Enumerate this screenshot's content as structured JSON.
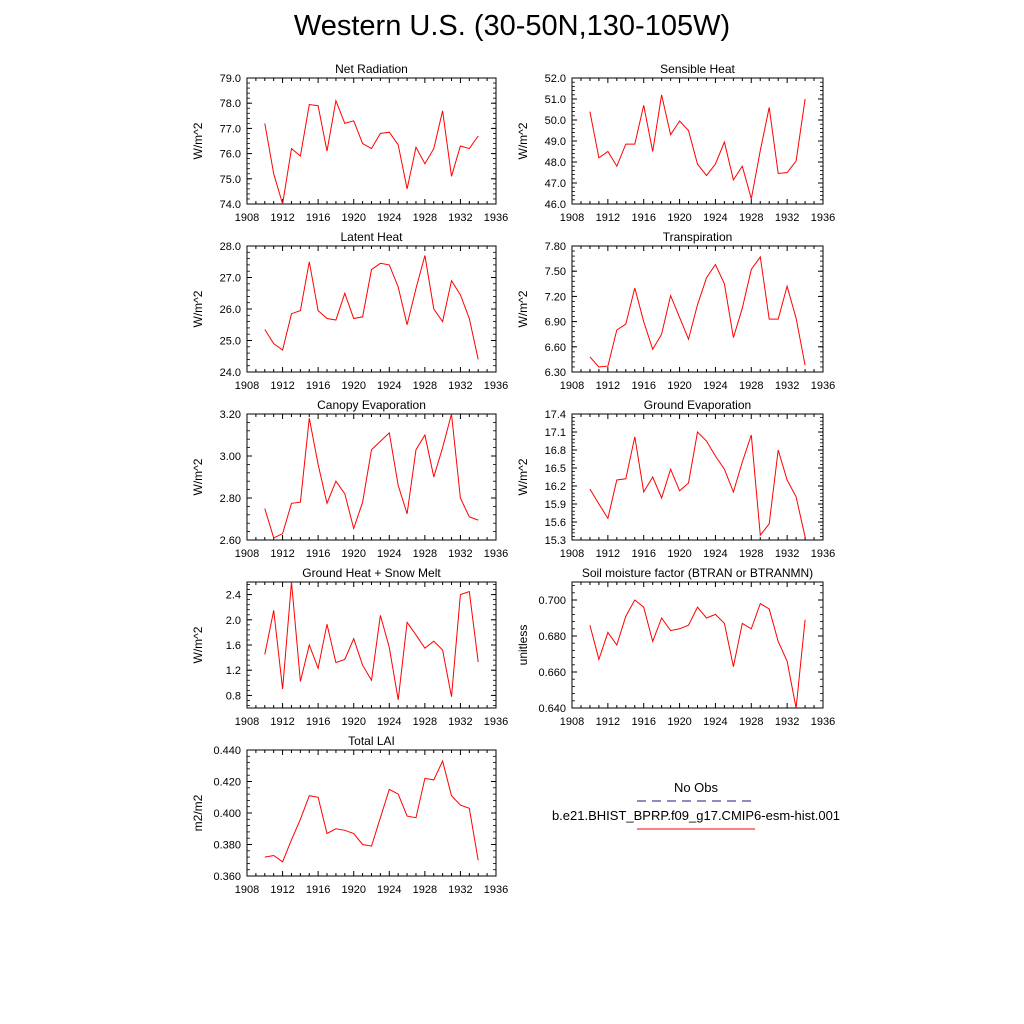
{
  "page": {
    "title": "Western U.S. (30-50N,130-105W)"
  },
  "legend": {
    "items": [
      {
        "label": "No Obs",
        "color": "#1a1a80",
        "style": "dashed"
      },
      {
        "label": "b.e21.BHIST_BPRP.f09_g17.CMIP6-esm-hist.001",
        "color": "#ff0000",
        "style": "solid"
      }
    ]
  },
  "chart_data": [
    {
      "type": "line",
      "title": "Net Radiation",
      "ylabel": "W/m^2",
      "xlim": [
        1908,
        1936
      ],
      "ylim": [
        74.0,
        79.0
      ],
      "xticks": [
        1908,
        1912,
        1916,
        1920,
        1924,
        1928,
        1932,
        1936
      ],
      "yticks": [
        "74.0",
        "75.0",
        "76.0",
        "77.0",
        "78.0",
        "79.0"
      ],
      "x": [
        1910,
        1911,
        1912,
        1913,
        1914,
        1915,
        1916,
        1917,
        1918,
        1919,
        1920,
        1921,
        1922,
        1923,
        1924,
        1925,
        1926,
        1927,
        1928,
        1929,
        1930,
        1931,
        1932,
        1933,
        1934
      ],
      "series": [
        {
          "color": "#ff0000",
          "values": [
            77.2,
            75.2,
            74.0,
            76.2,
            75.9,
            77.95,
            77.9,
            76.1,
            78.1,
            77.2,
            77.3,
            76.4,
            76.2,
            76.8,
            76.85,
            76.35,
            74.6,
            76.25,
            75.6,
            76.2,
            77.7,
            75.1,
            76.3,
            76.2,
            76.7
          ]
        }
      ]
    },
    {
      "type": "line",
      "title": "Sensible Heat",
      "ylabel": "W/m^2",
      "xlim": [
        1908,
        1936
      ],
      "ylim": [
        46.0,
        52.0
      ],
      "xticks": [
        1908,
        1912,
        1916,
        1920,
        1924,
        1928,
        1932,
        1936
      ],
      "yticks": [
        "46.0",
        "47.0",
        "48.0",
        "49.0",
        "50.0",
        "51.0",
        "52.0"
      ],
      "x": [
        1910,
        1911,
        1912,
        1913,
        1914,
        1915,
        1916,
        1917,
        1918,
        1919,
        1920,
        1921,
        1922,
        1923,
        1924,
        1925,
        1926,
        1927,
        1928,
        1929,
        1930,
        1931,
        1932,
        1933,
        1934
      ],
      "series": [
        {
          "color": "#ff0000",
          "values": [
            50.4,
            48.2,
            48.5,
            47.8,
            48.85,
            48.85,
            50.7,
            48.5,
            51.2,
            49.3,
            49.95,
            49.5,
            47.9,
            47.35,
            47.9,
            48.95,
            47.15,
            47.8,
            46.25,
            48.55,
            50.6,
            47.45,
            47.5,
            48.05,
            51.0
          ]
        }
      ]
    },
    {
      "type": "line",
      "title": "Latent Heat",
      "ylabel": "W/m^2",
      "xlim": [
        1908,
        1936
      ],
      "ylim": [
        24.0,
        28.0
      ],
      "xticks": [
        1908,
        1912,
        1916,
        1920,
        1924,
        1928,
        1932,
        1936
      ],
      "yticks": [
        "24.0",
        "25.0",
        "26.0",
        "27.0",
        "28.0"
      ],
      "x": [
        1910,
        1911,
        1912,
        1913,
        1914,
        1915,
        1916,
        1917,
        1918,
        1919,
        1920,
        1921,
        1922,
        1923,
        1924,
        1925,
        1926,
        1927,
        1928,
        1929,
        1930,
        1931,
        1932,
        1933,
        1934
      ],
      "series": [
        {
          "color": "#ff0000",
          "values": [
            25.35,
            24.9,
            24.7,
            25.85,
            25.95,
            27.5,
            25.95,
            25.7,
            25.65,
            26.5,
            25.7,
            25.75,
            27.25,
            27.45,
            27.4,
            26.7,
            25.5,
            26.65,
            27.7,
            26.0,
            25.6,
            26.9,
            26.45,
            25.7,
            24.4
          ]
        }
      ]
    },
    {
      "type": "line",
      "title": "Transpiration",
      "ylabel": "W/m^2",
      "xlim": [
        1908,
        1936
      ],
      "ylim": [
        6.3,
        7.8
      ],
      "xticks": [
        1908,
        1912,
        1916,
        1920,
        1924,
        1928,
        1932,
        1936
      ],
      "yticks": [
        "6.30",
        "6.60",
        "6.90",
        "7.20",
        "7.50",
        "7.80"
      ],
      "x": [
        1910,
        1911,
        1912,
        1913,
        1914,
        1915,
        1916,
        1917,
        1918,
        1919,
        1920,
        1921,
        1922,
        1923,
        1924,
        1925,
        1926,
        1927,
        1928,
        1929,
        1930,
        1931,
        1932,
        1933,
        1934
      ],
      "series": [
        {
          "color": "#ff0000",
          "values": [
            6.48,
            6.36,
            6.37,
            6.8,
            6.87,
            7.3,
            6.9,
            6.57,
            6.75,
            7.21,
            6.95,
            6.69,
            7.1,
            7.42,
            7.58,
            7.35,
            6.71,
            7.06,
            7.52,
            7.67,
            6.93,
            6.93,
            7.32,
            6.94,
            6.38
          ]
        }
      ]
    },
    {
      "type": "line",
      "title": "Canopy Evaporation",
      "ylabel": "W/m^2",
      "xlim": [
        1908,
        1936
      ],
      "ylim": [
        2.6,
        3.2
      ],
      "xticks": [
        1908,
        1912,
        1916,
        1920,
        1924,
        1928,
        1932,
        1936
      ],
      "yticks": [
        "2.60",
        "2.80",
        "3.00",
        "3.20"
      ],
      "x": [
        1910,
        1911,
        1912,
        1913,
        1914,
        1915,
        1916,
        1917,
        1918,
        1919,
        1920,
        1921,
        1922,
        1923,
        1924,
        1925,
        1926,
        1927,
        1928,
        1929,
        1930,
        1931,
        1932,
        1933,
        1934
      ],
      "series": [
        {
          "color": "#ff0000",
          "values": [
            2.75,
            2.61,
            2.63,
            2.775,
            2.78,
            3.18,
            2.96,
            2.775,
            2.88,
            2.82,
            2.655,
            2.78,
            3.03,
            3.07,
            3.11,
            2.86,
            2.725,
            3.03,
            3.1,
            2.9,
            3.04,
            3.2,
            2.8,
            2.71,
            2.695
          ]
        }
      ]
    },
    {
      "type": "line",
      "title": "Ground Evaporation",
      "ylabel": "W/m^2",
      "xlim": [
        1908,
        1936
      ],
      "ylim": [
        15.3,
        17.4
      ],
      "xticks": [
        1908,
        1912,
        1916,
        1920,
        1924,
        1928,
        1932,
        1936
      ],
      "yticks": [
        "15.3",
        "15.6",
        "15.9",
        "16.2",
        "16.5",
        "16.8",
        "17.1",
        "17.4"
      ],
      "x": [
        1910,
        1911,
        1912,
        1913,
        1914,
        1915,
        1916,
        1917,
        1918,
        1919,
        1920,
        1921,
        1922,
        1923,
        1924,
        1925,
        1926,
        1927,
        1928,
        1929,
        1930,
        1931,
        1932,
        1933,
        1934
      ],
      "series": [
        {
          "color": "#ff0000",
          "values": [
            16.15,
            15.9,
            15.66,
            16.3,
            16.32,
            17.02,
            16.1,
            16.35,
            16.0,
            16.48,
            16.12,
            16.25,
            17.1,
            16.95,
            16.7,
            16.48,
            16.1,
            16.6,
            17.05,
            15.38,
            15.57,
            16.8,
            16.3,
            16.02,
            15.35
          ]
        }
      ]
    },
    {
      "type": "line",
      "title": "Ground Heat + Snow Melt",
      "ylabel": "W/m^2",
      "xlim": [
        1908,
        1936
      ],
      "ylim": [
        0.6,
        2.6
      ],
      "xticks": [
        1908,
        1912,
        1916,
        1920,
        1924,
        1928,
        1932,
        1936
      ],
      "yticks": [
        "0.8",
        "1.2",
        "1.6",
        "2.0",
        "2.4"
      ],
      "ytick_values": [
        0.8,
        1.2,
        1.6,
        2.0,
        2.4
      ],
      "x": [
        1910,
        1911,
        1912,
        1913,
        1914,
        1915,
        1916,
        1917,
        1918,
        1919,
        1920,
        1921,
        1922,
        1923,
        1924,
        1925,
        1926,
        1927,
        1928,
        1929,
        1930,
        1931,
        1932,
        1933,
        1934
      ],
      "series": [
        {
          "color": "#ff0000",
          "values": [
            1.45,
            2.15,
            0.9,
            2.6,
            1.02,
            1.6,
            1.23,
            1.93,
            1.32,
            1.37,
            1.7,
            1.28,
            1.04,
            2.07,
            1.56,
            0.73,
            1.96,
            1.76,
            1.55,
            1.66,
            1.52,
            0.78,
            2.4,
            2.45,
            1.33
          ]
        }
      ]
    },
    {
      "type": "line",
      "title": "Soil moisture factor (BTRAN or BTRANMN)",
      "ylabel": "unitless",
      "xlim": [
        1908,
        1936
      ],
      "ylim": [
        0.64,
        0.71
      ],
      "xticks": [
        1908,
        1912,
        1916,
        1920,
        1924,
        1928,
        1932,
        1936
      ],
      "yticks": [
        "0.640",
        "0.660",
        "0.680",
        "0.700"
      ],
      "ytick_values": [
        0.64,
        0.66,
        0.68,
        0.7
      ],
      "x": [
        1910,
        1911,
        1912,
        1913,
        1914,
        1915,
        1916,
        1917,
        1918,
        1919,
        1920,
        1921,
        1922,
        1923,
        1924,
        1925,
        1926,
        1927,
        1928,
        1929,
        1930,
        1931,
        1932,
        1933,
        1934
      ],
      "series": [
        {
          "color": "#ff0000",
          "values": [
            0.686,
            0.667,
            0.682,
            0.675,
            0.691,
            0.7,
            0.696,
            0.677,
            0.69,
            0.683,
            0.684,
            0.686,
            0.696,
            0.69,
            0.692,
            0.687,
            0.663,
            0.687,
            0.684,
            0.698,
            0.695,
            0.677,
            0.666,
            0.64,
            0.689
          ]
        }
      ]
    },
    {
      "type": "line",
      "title": "Total LAI",
      "ylabel": "m2/m2",
      "xlim": [
        1908,
        1936
      ],
      "ylim": [
        0.36,
        0.44
      ],
      "xticks": [
        1908,
        1912,
        1916,
        1920,
        1924,
        1928,
        1932,
        1936
      ],
      "yticks": [
        "0.360",
        "0.380",
        "0.400",
        "0.420",
        "0.440"
      ],
      "x": [
        1910,
        1911,
        1912,
        1913,
        1914,
        1915,
        1916,
        1917,
        1918,
        1919,
        1920,
        1921,
        1922,
        1923,
        1924,
        1925,
        1926,
        1927,
        1928,
        1929,
        1930,
        1931,
        1932,
        1933,
        1934
      ],
      "series": [
        {
          "color": "#ff0000",
          "values": [
            0.372,
            0.373,
            0.369,
            0.383,
            0.396,
            0.411,
            0.41,
            0.387,
            0.39,
            0.389,
            0.387,
            0.38,
            0.379,
            0.397,
            0.415,
            0.412,
            0.398,
            0.397,
            0.422,
            0.421,
            0.433,
            0.411,
            0.405,
            0.403,
            0.37
          ]
        }
      ]
    }
  ]
}
